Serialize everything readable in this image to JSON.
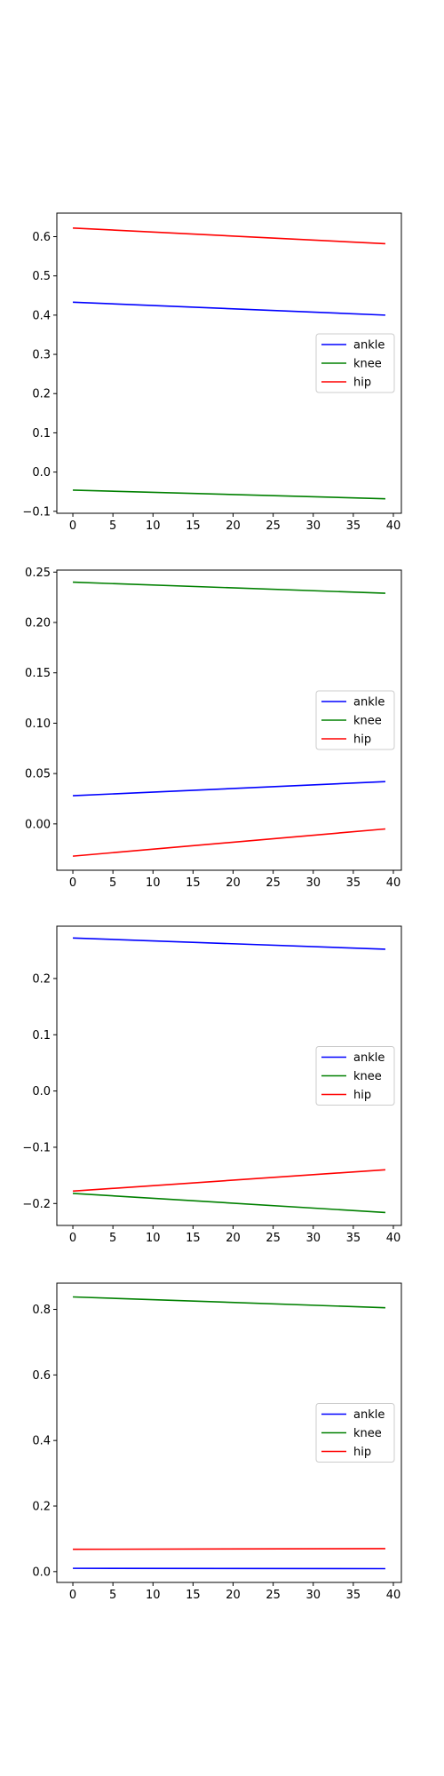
{
  "chart_data": [
    {
      "type": "line",
      "xlim": [
        -2,
        41
      ],
      "ylim": [
        -0.105,
        0.66
      ],
      "xticks": [
        0,
        5,
        10,
        15,
        20,
        25,
        30,
        35,
        40
      ],
      "yticks": [
        -0.1,
        0.0,
        0.1,
        0.2,
        0.3,
        0.4,
        0.5,
        0.6
      ],
      "ytick_labels": [
        "−0.1",
        "0.0",
        "0.1",
        "0.2",
        "0.3",
        "0.4",
        "0.5",
        "0.6"
      ],
      "x": [
        0,
        39
      ],
      "legend_position": "center-right",
      "series": [
        {
          "name": "ankle",
          "color": "#0000ff",
          "values": [
            0.433,
            0.4
          ]
        },
        {
          "name": "knee",
          "color": "#008000",
          "values": [
            -0.046,
            -0.068
          ]
        },
        {
          "name": "hip",
          "color": "#ff0000",
          "values": [
            0.622,
            0.582
          ]
        }
      ]
    },
    {
      "type": "line",
      "xlim": [
        -2,
        41
      ],
      "ylim": [
        -0.046,
        0.252
      ],
      "xticks": [
        0,
        5,
        10,
        15,
        20,
        25,
        30,
        35,
        40
      ],
      "yticks": [
        0.0,
        0.05,
        0.1,
        0.15,
        0.2,
        0.25
      ],
      "ytick_labels": [
        "0.00",
        "0.05",
        "0.10",
        "0.15",
        "0.20",
        "0.25"
      ],
      "x": [
        0,
        39
      ],
      "legend_position": "center-right",
      "series": [
        {
          "name": "ankle",
          "color": "#0000ff",
          "values": [
            0.028,
            0.042
          ]
        },
        {
          "name": "knee",
          "color": "#008000",
          "values": [
            0.24,
            0.229
          ]
        },
        {
          "name": "hip",
          "color": "#ff0000",
          "values": [
            -0.032,
            -0.005
          ]
        }
      ]
    },
    {
      "type": "line",
      "xlim": [
        -2,
        41
      ],
      "ylim": [
        -0.239,
        0.293
      ],
      "xticks": [
        0,
        5,
        10,
        15,
        20,
        25,
        30,
        35,
        40
      ],
      "yticks": [
        -0.2,
        -0.1,
        0.0,
        0.1,
        0.2
      ],
      "ytick_labels": [
        "−0.2",
        "−0.1",
        "0.0",
        "0.1",
        "0.2"
      ],
      "x": [
        0,
        39
      ],
      "legend_position": "center-right",
      "series": [
        {
          "name": "ankle",
          "color": "#0000ff",
          "values": [
            0.272,
            0.252
          ]
        },
        {
          "name": "knee",
          "color": "#008000",
          "values": [
            -0.182,
            -0.216
          ]
        },
        {
          "name": "hip",
          "color": "#ff0000",
          "values": [
            -0.178,
            -0.14
          ]
        }
      ]
    },
    {
      "type": "line",
      "xlim": [
        -2,
        41
      ],
      "ylim": [
        -0.033,
        0.88
      ],
      "xticks": [
        0,
        5,
        10,
        15,
        20,
        25,
        30,
        35,
        40
      ],
      "yticks": [
        0.0,
        0.2,
        0.4,
        0.6,
        0.8
      ],
      "ytick_labels": [
        "0.0",
        "0.2",
        "0.4",
        "0.6",
        "0.8"
      ],
      "x": [
        0,
        39
      ],
      "legend_position": "center-right",
      "series": [
        {
          "name": "ankle",
          "color": "#0000ff",
          "values": [
            0.01,
            0.009
          ]
        },
        {
          "name": "knee",
          "color": "#008000",
          "values": [
            0.838,
            0.805
          ]
        },
        {
          "name": "hip",
          "color": "#ff0000",
          "values": [
            0.068,
            0.07
          ]
        }
      ]
    }
  ]
}
